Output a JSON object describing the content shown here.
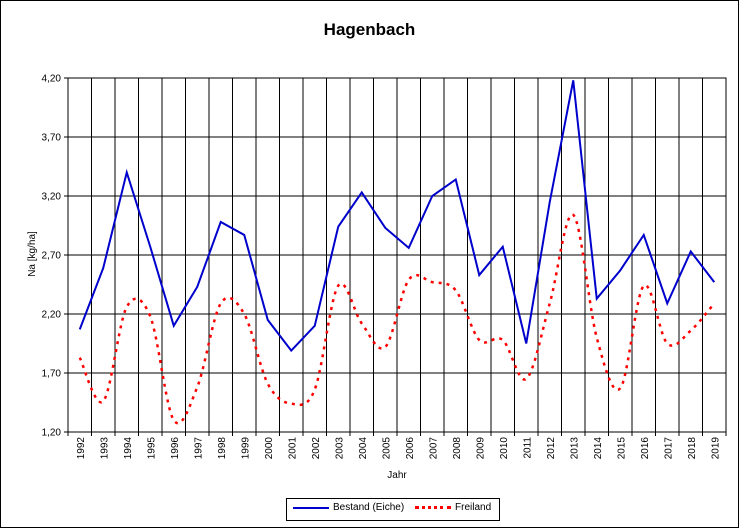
{
  "chart_data": {
    "type": "line",
    "title": "Hagenbach",
    "xlabel": "Jahr",
    "ylabel": "Na [kg/ha]",
    "ylim": [
      1.2,
      4.2
    ],
    "yticks": [
      "1,20",
      "1,70",
      "2,20",
      "2,70",
      "3,20",
      "3,70",
      "4,20"
    ],
    "ytick_values": [
      1.2,
      1.7,
      2.2,
      2.7,
      3.2,
      3.7,
      4.2
    ],
    "x": [
      "1992",
      "1993",
      "1994",
      "1995",
      "1996",
      "1997",
      "1998",
      "1999",
      "2000",
      "2001",
      "2002",
      "2003",
      "2004",
      "2005",
      "2006",
      "2007",
      "2008",
      "2009",
      "2010",
      "2011",
      "2012",
      "2013",
      "2014",
      "2015",
      "2016",
      "2017",
      "2018",
      "2019"
    ],
    "grid": true,
    "legend_position": "bottom",
    "series": [
      {
        "name": "Bestand (Eiche)",
        "color": "#0000cc",
        "style": "solid",
        "values": [
          2.07,
          2.59,
          3.4,
          2.77,
          2.1,
          2.43,
          2.98,
          2.87,
          2.15,
          1.89,
          2.1,
          2.94,
          3.23,
          2.93,
          2.76,
          3.2,
          3.34,
          2.53,
          2.77,
          1.95,
          3.15,
          4.18,
          2.33,
          2.57,
          2.87,
          2.29,
          2.73,
          2.47
        ]
      },
      {
        "name": "Freiland",
        "color": "#ff0000",
        "style": "dotted",
        "values": [
          1.83,
          1.46,
          2.26,
          2.18,
          1.3,
          1.58,
          2.29,
          2.2,
          1.61,
          1.44,
          1.56,
          2.44,
          2.12,
          1.92,
          2.49,
          2.47,
          2.4,
          1.98,
          1.98,
          1.65,
          2.29,
          3.04,
          2.0,
          1.57,
          2.44,
          1.95,
          2.06,
          2.29
        ]
      }
    ]
  }
}
